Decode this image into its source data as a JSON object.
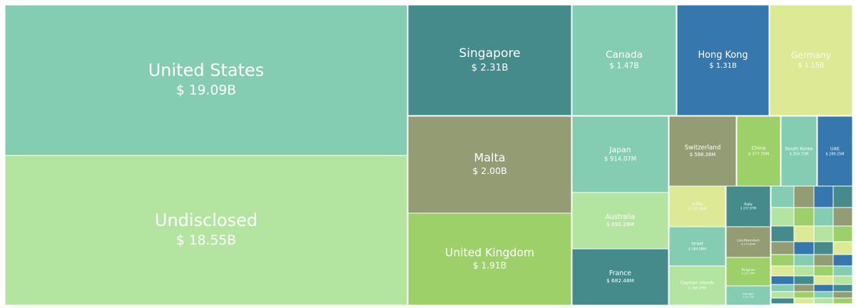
{
  "chart_data": {
    "type": "treemap",
    "categories": [
      "United States",
      "Undisclosed",
      "Singapore",
      "Malta",
      "United Kingdom",
      "Canada",
      "Hong Kong",
      "Germany",
      "Japan",
      "Australia",
      "France",
      "Switzerland",
      "China",
      "South Korea",
      "UAE",
      "India",
      "Italy",
      "Israel",
      "Liechtenstein",
      "Cayman Islands",
      "Belgium",
      "Portugal"
    ],
    "values": [
      19.09,
      18.55,
      2.31,
      2.0,
      1.91,
      1.47,
      1.31,
      1.15,
      0.91407,
      0.69028,
      0.68248,
      0.58838,
      0.3777,
      0.35472,
      0.29925,
      0.27086,
      0.23787,
      0.18488,
      0.17365,
      0.16697,
      0.14739,
      0.13151
    ],
    "value_labels": [
      "$ 19.09B",
      "$ 18.55B",
      "$ 2.31B",
      "$ 2.00B",
      "$ 1.91B",
      "$ 1.47B",
      "$ 1.31B",
      "$ 1.15B",
      "$ 914.07M",
      "$ 690.28M",
      "$ 682.48M",
      "$ 588.38M",
      "$ 377.70M",
      "$ 354.72M",
      "$ 299.25M",
      "$ 270.86M",
      "$ 237.87M",
      "$ 184.88M",
      "$ 173.65M",
      "$ 166.97M",
      "$ 147.39M",
      "$ 131.51M"
    ],
    "colors": [
      "#84cdb3",
      "#b4e5a0",
      "#468b8b",
      "#939c72",
      "#9dd068",
      "#84cdb3",
      "#3677ae",
      "#dde995",
      "#84cdb3",
      "#b4e5a0",
      "#468b8b",
      "#939c72",
      "#9dd068",
      "#84cdb3",
      "#3677ae",
      "#dde995",
      "#468b8b",
      "#84cdb3",
      "#939c72",
      "#b4e5a0",
      "#9dd068",
      "#84cdb3"
    ]
  }
}
